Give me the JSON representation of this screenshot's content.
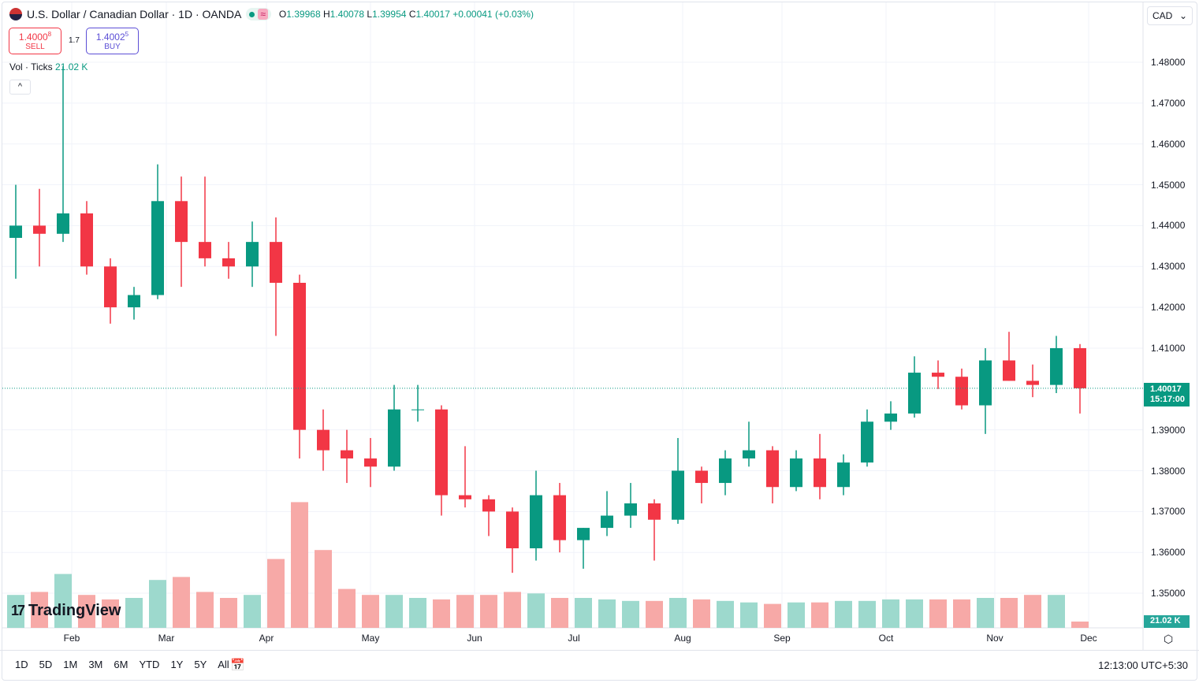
{
  "header": {
    "title": "U.S. Dollar / Canadian Dollar · 1D · OANDA",
    "market_status": "≈",
    "open_label": "O",
    "open": "1.39968",
    "high_label": "H",
    "high": "1.40078",
    "low_label": "L",
    "low": "1.39954",
    "close_label": "C",
    "close": "1.40017",
    "change": "+0.00041 (+0.03%)"
  },
  "trade": {
    "sell_price": "1.4000",
    "sell_sup": "8",
    "sell_label": "SELL",
    "spread": "1.7",
    "buy_price": "1.4002",
    "buy_sup": "5",
    "buy_label": "BUY"
  },
  "volume_legend": {
    "label": "Vol · Ticks",
    "value": "21.02 K"
  },
  "currency": "CAD",
  "last_price": {
    "price": "1.40017",
    "countdown": "15:17:00"
  },
  "volume_last": "21.02 K",
  "logo": "TradingView",
  "timeframes": [
    "1D",
    "5D",
    "1M",
    "3M",
    "6M",
    "YTD",
    "1Y",
    "5Y",
    "All"
  ],
  "clock": "12:13:00 UTC+5:30",
  "colors": {
    "up": "#089981",
    "down": "#f23645",
    "vol_up": "#9dd9cd",
    "vol_down": "#f7a9a7"
  },
  "chart_data": {
    "type": "candlestick",
    "interval_note": "weekly aggregation of daily candles (approximate)",
    "y_ticks": [
      "1.48000",
      "1.47000",
      "1.46000",
      "1.45000",
      "1.44000",
      "1.43000",
      "1.42000",
      "1.41000",
      "1.39000",
      "1.38000",
      "1.37000",
      "1.36000",
      "1.35000"
    ],
    "ylim": [
      1.35,
      1.48
    ],
    "x_ticks": [
      "Feb",
      "Mar",
      "Apr",
      "May",
      "Jun",
      "Jul",
      "Aug",
      "Sep",
      "Oct",
      "Nov",
      "Dec"
    ],
    "grid": true,
    "ohlc": [
      [
        1.437,
        1.45,
        1.427,
        1.44
      ],
      [
        1.44,
        1.449,
        1.43,
        1.438
      ],
      [
        1.438,
        1.479,
        1.436,
        1.443
      ],
      [
        1.443,
        1.446,
        1.428,
        1.43
      ],
      [
        1.43,
        1.432,
        1.416,
        1.42
      ],
      [
        1.42,
        1.425,
        1.417,
        1.423
      ],
      [
        1.423,
        1.455,
        1.422,
        1.446
      ],
      [
        1.446,
        1.452,
        1.425,
        1.436
      ],
      [
        1.436,
        1.452,
        1.43,
        1.432
      ],
      [
        1.432,
        1.436,
        1.427,
        1.43
      ],
      [
        1.43,
        1.441,
        1.425,
        1.436
      ],
      [
        1.436,
        1.442,
        1.413,
        1.426
      ],
      [
        1.426,
        1.428,
        1.383,
        1.39
      ],
      [
        1.39,
        1.395,
        1.38,
        1.385
      ],
      [
        1.385,
        1.39,
        1.377,
        1.383
      ],
      [
        1.383,
        1.388,
        1.376,
        1.381
      ],
      [
        1.381,
        1.401,
        1.38,
        1.395
      ],
      [
        1.395,
        1.401,
        1.392,
        1.395
      ],
      [
        1.395,
        1.396,
        1.369,
        1.374
      ],
      [
        1.374,
        1.386,
        1.371,
        1.373
      ],
      [
        1.373,
        1.374,
        1.364,
        1.37
      ],
      [
        1.37,
        1.371,
        1.355,
        1.361
      ],
      [
        1.361,
        1.38,
        1.358,
        1.374
      ],
      [
        1.374,
        1.377,
        1.36,
        1.363
      ],
      [
        1.363,
        1.366,
        1.356,
        1.366
      ],
      [
        1.366,
        1.375,
        1.364,
        1.369
      ],
      [
        1.369,
        1.377,
        1.366,
        1.372
      ],
      [
        1.372,
        1.373,
        1.358,
        1.368
      ],
      [
        1.368,
        1.388,
        1.367,
        1.38
      ],
      [
        1.38,
        1.381,
        1.372,
        1.377
      ],
      [
        1.377,
        1.385,
        1.374,
        1.383
      ],
      [
        1.383,
        1.392,
        1.381,
        1.385
      ],
      [
        1.385,
        1.386,
        1.372,
        1.376
      ],
      [
        1.376,
        1.385,
        1.375,
        1.383
      ],
      [
        1.383,
        1.389,
        1.373,
        1.376
      ],
      [
        1.376,
        1.384,
        1.374,
        1.382
      ],
      [
        1.382,
        1.395,
        1.381,
        1.392
      ],
      [
        1.392,
        1.397,
        1.39,
        1.394
      ],
      [
        1.394,
        1.408,
        1.393,
        1.404
      ],
      [
        1.404,
        1.407,
        1.4,
        1.403
      ],
      [
        1.403,
        1.405,
        1.395,
        1.396
      ],
      [
        1.396,
        1.41,
        1.389,
        1.407
      ],
      [
        1.407,
        1.414,
        1.402,
        1.402
      ],
      [
        1.402,
        1.406,
        1.398,
        1.401
      ],
      [
        1.401,
        1.413,
        1.399,
        1.41
      ],
      [
        1.41,
        1.411,
        1.394,
        1.40017
      ]
    ],
    "volume_k": [
      110,
      120,
      180,
      110,
      95,
      100,
      160,
      170,
      120,
      100,
      110,
      230,
      420,
      260,
      130,
      110,
      110,
      100,
      95,
      110,
      110,
      120,
      115,
      100,
      100,
      95,
      90,
      90,
      100,
      95,
      90,
      85,
      80,
      85,
      85,
      90,
      90,
      95,
      95,
      95,
      95,
      100,
      100,
      110,
      110,
      21.02
    ]
  }
}
